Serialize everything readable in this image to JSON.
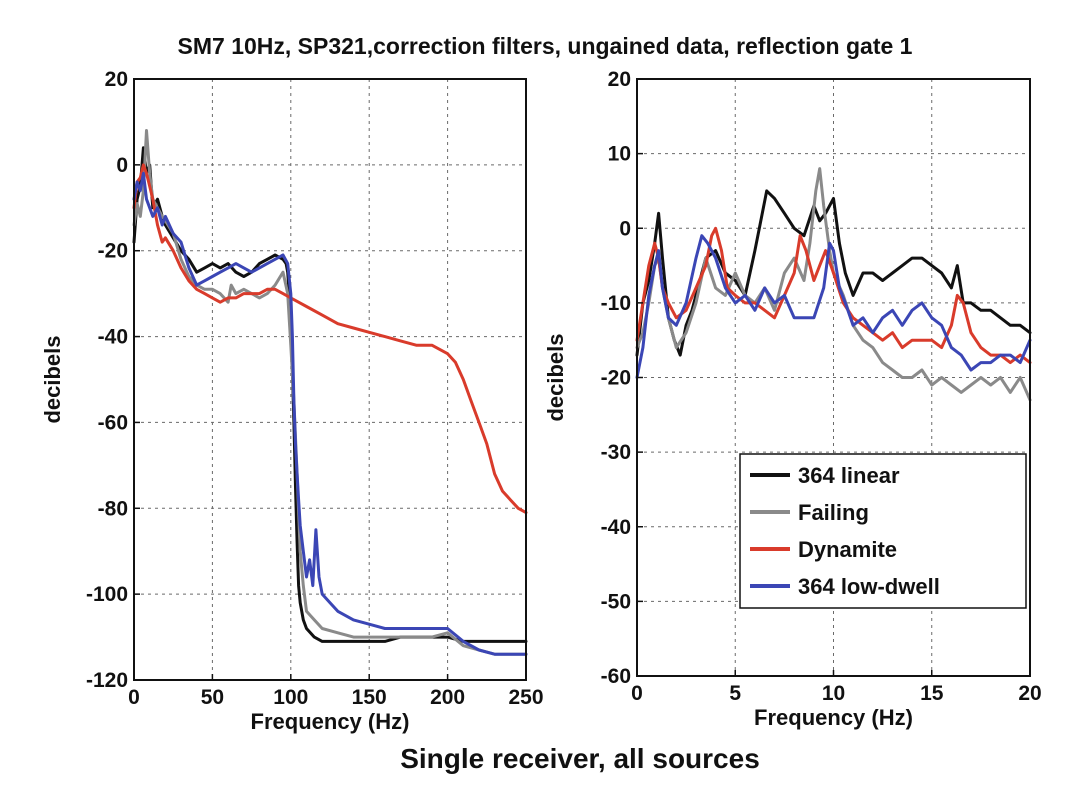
{
  "figure": {
    "title": "SM7 10Hz, SP321,correction filters, ungained data, reflection gate 1",
    "caption": "Single receiver, all sources"
  },
  "chart_data": [
    {
      "type": "line",
      "panel": "left",
      "xlabel": "Frequency (Hz)",
      "ylabel": "decibels",
      "xlim": [
        0,
        250
      ],
      "ylim": [
        -120,
        20
      ],
      "xticks": [
        0,
        50,
        100,
        150,
        200,
        250
      ],
      "yticks": [
        20,
        0,
        -20,
        -40,
        -60,
        -80,
        -100,
        -120
      ],
      "grid": true,
      "series": [
        {
          "name": "364 linear",
          "color": "#111111",
          "x": [
            0,
            2,
            4,
            6,
            8,
            10,
            12,
            15,
            18,
            20,
            25,
            30,
            35,
            40,
            45,
            50,
            55,
            60,
            65,
            70,
            75,
            80,
            85,
            90,
            95,
            97,
            98,
            99,
            100,
            101,
            102,
            103,
            104,
            105,
            106,
            108,
            110,
            115,
            120,
            130,
            140,
            150,
            160,
            170,
            180,
            190,
            200,
            210,
            220,
            230,
            240,
            250
          ],
          "y": [
            -18,
            -8,
            -5,
            4,
            -2,
            0,
            -10,
            -8,
            -12,
            -14,
            -17,
            -20,
            -22,
            -25,
            -24,
            -23,
            -24,
            -23,
            -25,
            -26,
            -25,
            -23,
            -22,
            -21,
            -22,
            -23,
            -25,
            -30,
            -38,
            -48,
            -60,
            -75,
            -88,
            -98,
            -102,
            -106,
            -108,
            -110,
            -111,
            -111,
            -111,
            -111,
            -111,
            -110,
            -110,
            -110,
            -110,
            -111,
            -111,
            -111,
            -111,
            -111
          ]
        },
        {
          "name": "Failing",
          "color": "#8a8a8a",
          "x": [
            0,
            2,
            4,
            6,
            8,
            10,
            12,
            15,
            18,
            20,
            25,
            30,
            35,
            40,
            45,
            50,
            55,
            60,
            62,
            65,
            70,
            75,
            80,
            85,
            90,
            95,
            98,
            100,
            102,
            104,
            106,
            108,
            110,
            115,
            120,
            130,
            140,
            150,
            160,
            170,
            180,
            190,
            200,
            210,
            220,
            230,
            240,
            250
          ],
          "y": [
            -14,
            -9,
            -12,
            -6,
            8,
            -2,
            -8,
            -10,
            -12,
            -13,
            -16,
            -22,
            -26,
            -28,
            -29,
            -29,
            -30,
            -32,
            -28,
            -30,
            -29,
            -30,
            -31,
            -30,
            -28,
            -25,
            -30,
            -42,
            -55,
            -72,
            -90,
            -98,
            -104,
            -106,
            -108,
            -109,
            -110,
            -110,
            -110,
            -110,
            -110,
            -110,
            -109,
            -112,
            -113,
            -114,
            -114,
            -114
          ]
        },
        {
          "name": "Dynamite",
          "color": "#d93b2b",
          "x": [
            0,
            2,
            4,
            6,
            8,
            10,
            12,
            15,
            18,
            20,
            25,
            30,
            35,
            40,
            45,
            50,
            55,
            60,
            65,
            70,
            75,
            80,
            85,
            90,
            95,
            100,
            105,
            110,
            120,
            130,
            140,
            150,
            160,
            170,
            180,
            190,
            200,
            205,
            210,
            215,
            220,
            225,
            230,
            235,
            240,
            245,
            250
          ],
          "y": [
            -10,
            -4,
            -3,
            0,
            -2,
            -5,
            -8,
            -14,
            -18,
            -17,
            -20,
            -24,
            -27,
            -29,
            -30,
            -31,
            -32,
            -31,
            -31,
            -30,
            -30,
            -30,
            -29,
            -29,
            -30,
            -31,
            -32,
            -33,
            -35,
            -37,
            -38,
            -39,
            -40,
            -41,
            -42,
            -42,
            -44,
            -46,
            -50,
            -55,
            -60,
            -65,
            -72,
            -76,
            -78,
            -80,
            -81
          ]
        },
        {
          "name": "364 low-dwell",
          "color": "#3b46b5",
          "x": [
            0,
            2,
            4,
            6,
            8,
            10,
            12,
            15,
            18,
            20,
            25,
            30,
            35,
            40,
            45,
            50,
            55,
            60,
            65,
            70,
            75,
            80,
            85,
            90,
            95,
            98,
            100,
            101,
            102,
            103,
            104,
            105,
            106,
            108,
            110,
            112,
            114,
            116,
            118,
            120,
            125,
            130,
            140,
            150,
            160,
            170,
            180,
            190,
            200,
            210,
            220,
            230,
            240,
            250
          ],
          "y": [
            -8,
            -4,
            -6,
            -2,
            -8,
            -10,
            -12,
            -10,
            -14,
            -12,
            -16,
            -18,
            -24,
            -28,
            -27,
            -26,
            -25,
            -24,
            -23,
            -24,
            -25,
            -24,
            -23,
            -22,
            -21,
            -23,
            -30,
            -40,
            -55,
            -65,
            -72,
            -78,
            -84,
            -90,
            -96,
            -92,
            -98,
            -85,
            -96,
            -100,
            -102,
            -104,
            -106,
            -107,
            -108,
            -108,
            -108,
            -108,
            -108,
            -111,
            -113,
            -114,
            -114,
            -114
          ]
        }
      ]
    },
    {
      "type": "line",
      "panel": "right",
      "xlabel": "Frequency (Hz)",
      "ylabel": "decibels",
      "xlim": [
        0,
        20
      ],
      "ylim": [
        -60,
        20
      ],
      "xticks": [
        0,
        5,
        10,
        15,
        20
      ],
      "yticks": [
        20,
        10,
        0,
        -10,
        -20,
        -30,
        -40,
        -50,
        -60
      ],
      "grid": true,
      "legend_position": "bottom-right",
      "series": [
        {
          "name": "364 linear",
          "color": "#111111",
          "x": [
            0,
            0.3,
            0.6,
            0.9,
            1.1,
            1.3,
            1.6,
            1.9,
            2.2,
            2.5,
            2.8,
            3.1,
            3.5,
            4,
            4.5,
            5,
            5.5,
            6,
            6.3,
            6.6,
            7,
            7.5,
            8,
            8.5,
            9,
            9.3,
            9.6,
            10,
            10.3,
            10.6,
            11,
            11.5,
            12,
            12.5,
            13,
            13.5,
            14,
            14.5,
            15,
            15.5,
            16,
            16.3,
            16.6,
            17,
            17.5,
            18,
            18.5,
            19,
            19.5,
            20
          ],
          "y": [
            -17,
            -10,
            -7,
            -2,
            2,
            -4,
            -12,
            -15,
            -17,
            -13,
            -11,
            -8,
            -4,
            -3,
            -6,
            -7,
            -9,
            -3,
            1,
            5,
            4,
            2,
            0,
            -1,
            3,
            1,
            2,
            4,
            -2,
            -6,
            -9,
            -6,
            -6,
            -7,
            -6,
            -5,
            -4,
            -4,
            -5,
            -6,
            -8,
            -5,
            -10,
            -10,
            -11,
            -11,
            -12,
            -13,
            -13,
            -14
          ]
        },
        {
          "name": "Failing",
          "color": "#8a8a8a",
          "x": [
            0,
            0.3,
            0.6,
            0.9,
            1.1,
            1.3,
            1.6,
            2,
            2.5,
            3,
            3.5,
            4,
            4.5,
            5,
            5.5,
            6,
            6.5,
            7,
            7.5,
            8,
            8.5,
            8.8,
            9.1,
            9.3,
            9.5,
            9.8,
            10,
            10.5,
            11,
            11.5,
            12,
            12.5,
            13,
            13.5,
            14,
            14.5,
            15,
            15.5,
            16,
            16.5,
            17,
            17.5,
            18,
            18.5,
            19,
            19.5,
            20
          ],
          "y": [
            -16,
            -14,
            -10,
            -5,
            -4,
            -8,
            -12,
            -16,
            -14,
            -10,
            -4,
            -8,
            -9,
            -6,
            -9,
            -10,
            -8,
            -11,
            -6,
            -4,
            -7,
            -2,
            5,
            8,
            3,
            -3,
            -6,
            -9,
            -13,
            -15,
            -16,
            -18,
            -19,
            -20,
            -20,
            -19,
            -21,
            -20,
            -21,
            -22,
            -21,
            -20,
            -21,
            -20,
            -22,
            -20,
            -23
          ]
        },
        {
          "name": "Dynamite",
          "color": "#d93b2b",
          "x": [
            0,
            0.3,
            0.6,
            0.9,
            1.1,
            1.3,
            1.6,
            2,
            2.5,
            3,
            3.5,
            3.8,
            4,
            4.3,
            4.6,
            5,
            5.5,
            6,
            6.5,
            7,
            7.5,
            8,
            8.3,
            8.6,
            9,
            9.3,
            9.6,
            10,
            10.5,
            11,
            11.5,
            12,
            12.5,
            13,
            13.5,
            14,
            14.5,
            15,
            15.5,
            16,
            16.3,
            16.6,
            17,
            17.5,
            18,
            18.5,
            19,
            19.5,
            20
          ],
          "y": [
            -15,
            -10,
            -5,
            -2,
            -4,
            -8,
            -10,
            -12,
            -11,
            -8,
            -5,
            -1,
            0,
            -3,
            -8,
            -9,
            -10,
            -10,
            -11,
            -12,
            -9,
            -6,
            -1,
            -3,
            -7,
            -5,
            -3,
            -6,
            -10,
            -12,
            -13,
            -14,
            -15,
            -14,
            -16,
            -15,
            -15,
            -15,
            -16,
            -13,
            -9,
            -10,
            -14,
            -16,
            -17,
            -17,
            -18,
            -17,
            -18
          ]
        },
        {
          "name": "364 low-dwell",
          "color": "#3b46b5",
          "x": [
            0,
            0.3,
            0.6,
            0.9,
            1.1,
            1.3,
            1.6,
            2,
            2.5,
            3,
            3.3,
            3.6,
            4,
            4.5,
            5,
            5.5,
            6,
            6.5,
            7,
            7.5,
            8,
            8.5,
            9,
            9.5,
            9.8,
            10,
            10.3,
            10.6,
            11,
            11.5,
            12,
            12.5,
            13,
            13.5,
            14,
            14.5,
            15,
            15.5,
            16,
            16.5,
            17,
            17.5,
            18,
            18.5,
            19,
            19.5,
            20
          ],
          "y": [
            -20,
            -16,
            -9,
            -5,
            -3,
            -8,
            -12,
            -13,
            -10,
            -4,
            -1,
            -2,
            -4,
            -8,
            -10,
            -9,
            -11,
            -8,
            -10,
            -9,
            -12,
            -12,
            -12,
            -8,
            -2,
            -3,
            -8,
            -10,
            -13,
            -12,
            -14,
            -12,
            -11,
            -13,
            -11,
            -10,
            -12,
            -13,
            -16,
            -17,
            -19,
            -18,
            -18,
            -17,
            -17,
            -18,
            -15
          ]
        }
      ]
    }
  ]
}
